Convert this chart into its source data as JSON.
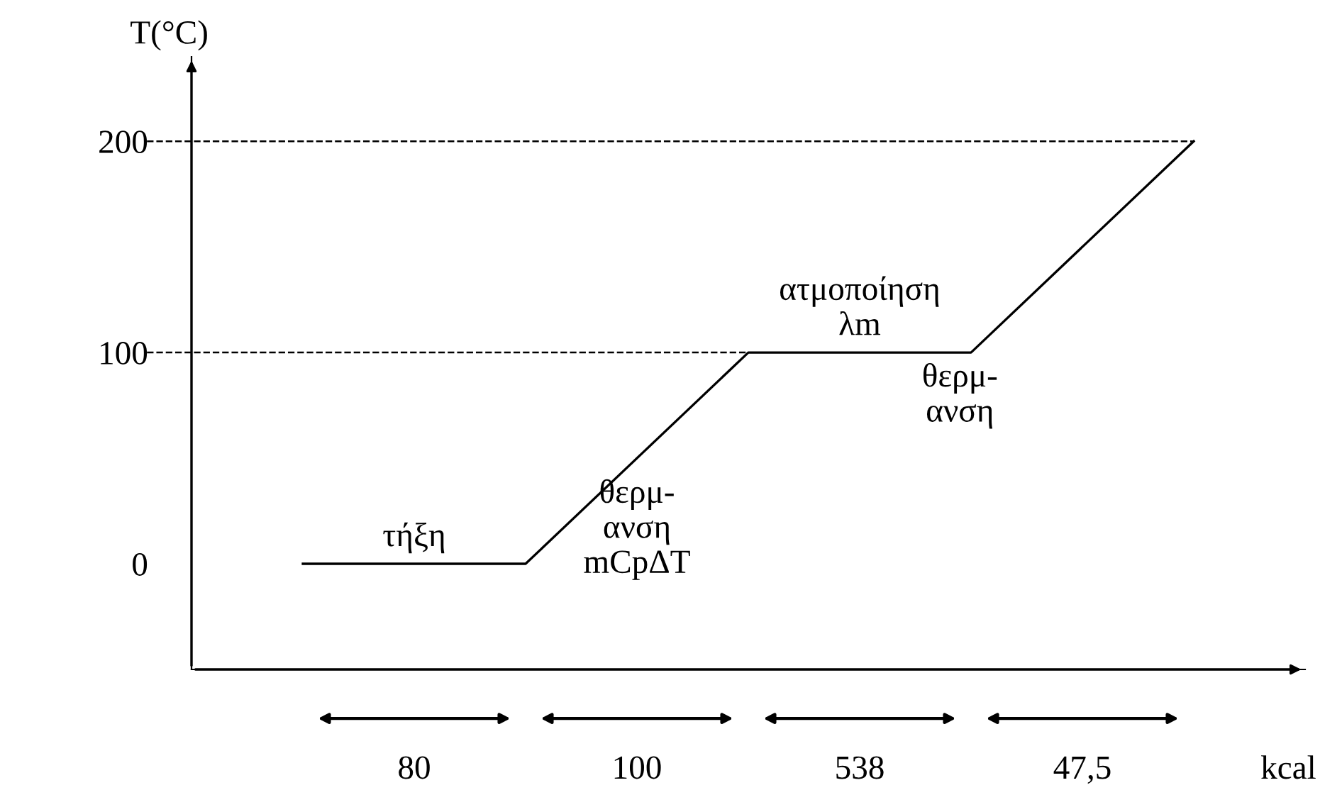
{
  "chart_data": {
    "type": "line",
    "ylabel": "T(°C)",
    "xlabel": "kcal",
    "categories": [
      null,
      null,
      null,
      null,
      null
    ],
    "series": [
      {
        "color": "#000000",
        "values": [
          0,
          0,
          100,
          100,
          200
        ]
      }
    ],
    "ylim": [
      -50,
      240
    ],
    "yticks": [
      0,
      100,
      200
    ],
    "ref_lines": [
      {
        "axis": "y",
        "value": 100,
        "line_style": "dashed",
        "color": "#000000"
      },
      {
        "axis": "y",
        "value": 200,
        "line_style": "dashed",
        "color": "#000000"
      }
    ],
    "annotations": [
      "τήξη",
      "θερμ-\nανση\nmCpΔT",
      "ατμοποίηση\nλm",
      "θερμ-\nανση",
      "80",
      "100",
      "538",
      "47,5"
    ],
    "grid": false,
    "legend": false,
    "marker": "none",
    "line_style": "solid"
  }
}
